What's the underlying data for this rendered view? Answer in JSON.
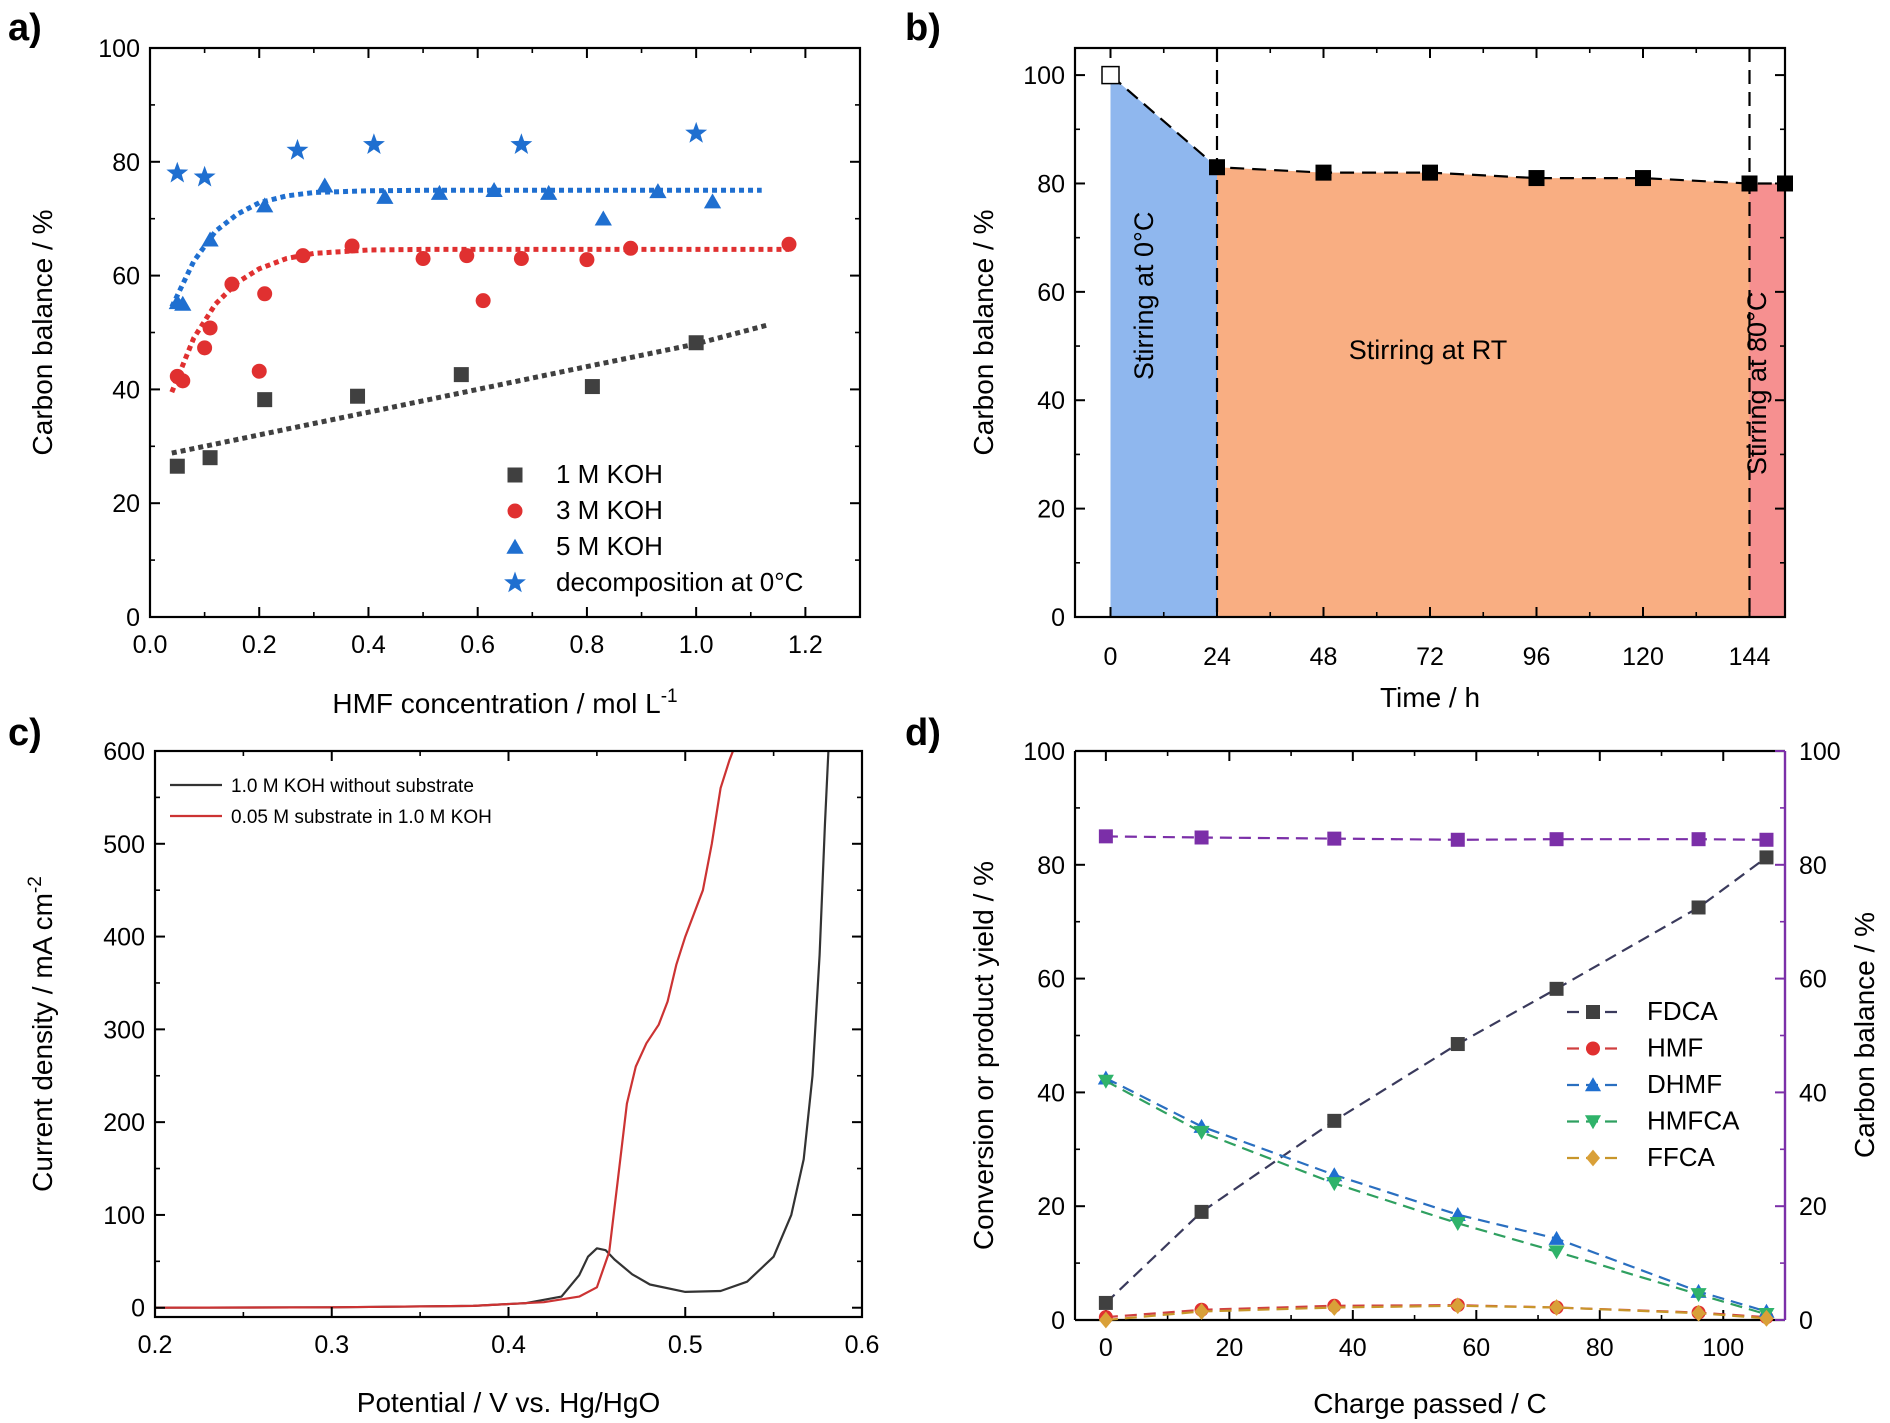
{
  "chart_data": [
    {
      "panel": "a)",
      "type": "scatter",
      "xlabel": "HMF concentration / mol L",
      "xlabel_sup": "-1",
      "ylabel": "Carbon balance / %",
      "xlim": [
        0.0,
        1.3
      ],
      "ylim": [
        0,
        100
      ],
      "xticks": [
        "0.0",
        "0.2",
        "0.4",
        "0.6",
        "0.8",
        "1.0",
        "1.2"
      ],
      "yticks": [
        "0",
        "20",
        "40",
        "60",
        "80",
        "100"
      ],
      "legend_position": "bottom-right",
      "series": [
        {
          "name": "1 M KOH",
          "marker": "square",
          "color": "#404040",
          "x": [
            0.05,
            0.11,
            0.21,
            0.38,
            0.57,
            0.81,
            1.0
          ],
          "y": [
            26.5,
            28,
            38.2,
            38.8,
            42.6,
            40.5,
            48.2
          ],
          "fit_x": [
            0.04,
            0.1,
            0.2,
            0.3,
            0.4,
            0.5,
            0.6,
            0.7,
            0.8,
            0.9,
            1.0,
            1.13
          ],
          "fit_y": [
            28.8,
            30.0,
            32.0,
            34.0,
            36.0,
            38.0,
            40.0,
            42.0,
            44.0,
            46.0,
            48.0,
            51.3
          ]
        },
        {
          "name": "3 M KOH",
          "marker": "circle",
          "color": "#e03030",
          "x": [
            0.05,
            0.06,
            0.1,
            0.11,
            0.15,
            0.2,
            0.21,
            0.28,
            0.37,
            0.5,
            0.58,
            0.61,
            0.68,
            0.8,
            0.88,
            1.17
          ],
          "y": [
            42.3,
            41.5,
            47.3,
            50.8,
            58.5,
            43.2,
            56.8,
            63.5,
            65.2,
            63.0,
            63.5,
            55.6,
            63.0,
            62.8,
            64.8,
            65.5
          ],
          "fit_x": [
            0.04,
            0.08,
            0.12,
            0.16,
            0.2,
            0.25,
            0.3,
            0.4,
            0.5,
            0.7,
            0.9,
            1.17
          ],
          "fit_y": [
            39.5,
            49.0,
            55.0,
            58.8,
            61.2,
            63.0,
            63.9,
            64.5,
            64.6,
            64.6,
            64.6,
            64.6
          ]
        },
        {
          "name": "5 M KOH",
          "marker": "triangle",
          "color": "#1f6fd0",
          "x": [
            0.05,
            0.06,
            0.11,
            0.21,
            0.32,
            0.43,
            0.53,
            0.63,
            0.73,
            0.83,
            0.93,
            1.03
          ],
          "y": [
            55.3,
            55.0,
            66.3,
            72.3,
            75.8,
            73.8,
            74.5,
            75.0,
            74.5,
            70.0,
            74.8,
            73.0
          ],
          "fit_x": [
            0.04,
            0.08,
            0.12,
            0.16,
            0.2,
            0.25,
            0.3,
            0.4,
            0.5,
            0.7,
            0.9,
            1.12
          ],
          "fit_y": [
            54.5,
            62.5,
            67.8,
            70.8,
            72.8,
            74.0,
            74.6,
            74.9,
            75.0,
            75.0,
            75.0,
            75.0
          ]
        },
        {
          "name": "decomposition at 0°C",
          "marker": "star",
          "color": "#1f6fd0",
          "x": [
            0.05,
            0.1,
            0.27,
            0.41,
            0.68,
            1.0
          ],
          "y": [
            78.0,
            77.3,
            82.0,
            83.0,
            83.0,
            85.0
          ]
        }
      ]
    },
    {
      "panel": "b)",
      "type": "area",
      "xlabel": "Time / h",
      "ylabel": "Carbon balance / %",
      "xlim": [
        -8,
        152
      ],
      "ylim": [
        0,
        105
      ],
      "xticks": [
        "0",
        "24",
        "48",
        "72",
        "96",
        "120",
        "144"
      ],
      "yticks": [
        "0",
        "20",
        "40",
        "60",
        "80",
        "100"
      ],
      "x": [
        0,
        24,
        48,
        72,
        96,
        120,
        144,
        152
      ],
      "y": [
        100,
        83,
        82,
        82,
        81,
        81,
        80,
        80
      ],
      "dividers_x": [
        24,
        144
      ],
      "regions": [
        {
          "label": "Stirring at 0°C",
          "from": 0,
          "to": 24,
          "color": "#8fb7ee"
        },
        {
          "label": "Stirring at RT",
          "from": 24,
          "to": 144,
          "color": "#f9ae82"
        },
        {
          "label": "Stirring at 80°C",
          "from": 144,
          "to": 152,
          "color": "#f69090"
        }
      ]
    },
    {
      "panel": "c)",
      "type": "line",
      "xlabel": "Potential / V vs. Hg/HgO",
      "ylabel": "Current density / mA cm",
      "ylabel_sup": "-2",
      "xlim": [
        0.2,
        0.6
      ],
      "ylim": [
        -10,
        600
      ],
      "xticks": [
        "0.2",
        "0.3",
        "0.4",
        "0.5",
        "0.6"
      ],
      "yticks": [
        "0",
        "100",
        "200",
        "300",
        "400",
        "500",
        "600"
      ],
      "legend_position": "top-left",
      "series": [
        {
          "name": "1.0 M KOH without substrate",
          "color": "#333333",
          "x": [
            0.2,
            0.3,
            0.38,
            0.41,
            0.43,
            0.44,
            0.445,
            0.45,
            0.455,
            0.46,
            0.47,
            0.48,
            0.5,
            0.52,
            0.535,
            0.55,
            0.56,
            0.567,
            0.572,
            0.576,
            0.579,
            0.581
          ],
          "y": [
            0,
            0.5,
            2,
            5,
            12,
            35,
            55,
            64,
            62,
            52,
            36,
            25,
            17,
            18,
            28,
            55,
            100,
            160,
            250,
            380,
            520,
            600
          ]
        },
        {
          "name": "0.05 M substrate in 1.0 M KOH",
          "color": "#cc3333",
          "x": [
            0.2,
            0.3,
            0.38,
            0.42,
            0.44,
            0.45,
            0.457,
            0.462,
            0.467,
            0.472,
            0.478,
            0.485,
            0.49,
            0.495,
            0.5,
            0.505,
            0.51,
            0.515,
            0.52,
            0.525,
            0.527
          ],
          "y": [
            0,
            0.5,
            2,
            6,
            12,
            22,
            60,
            140,
            220,
            260,
            285,
            305,
            330,
            370,
            400,
            425,
            450,
            500,
            560,
            590,
            600
          ]
        }
      ]
    },
    {
      "panel": "d)",
      "type": "line",
      "xlabel": "Charge passed / C",
      "ylabel": "Conversion or product yield / %",
      "y2label": "Carbon balance / %",
      "xlim": [
        -5,
        110
      ],
      "ylim": [
        0,
        100
      ],
      "y2lim": [
        0,
        100
      ],
      "xticks": [
        "0",
        "20",
        "40",
        "60",
        "80",
        "100"
      ],
      "yticks": [
        "0",
        "20",
        "40",
        "60",
        "80",
        "100"
      ],
      "y2ticks": [
        "0",
        "20",
        "40",
        "60",
        "80",
        "100"
      ],
      "legend_position": "center-right",
      "x": [
        0,
        15.5,
        37,
        57,
        73,
        96,
        107
      ],
      "series": [
        {
          "name": "FDCA",
          "marker": "square",
          "color": "#404040",
          "line": "#3a3a5c",
          "values": [
            3,
            19,
            35,
            48.5,
            58.2,
            72.5,
            81.3
          ]
        },
        {
          "name": "HMF",
          "marker": "circle",
          "color": "#e03030",
          "line": "#d04040",
          "values": [
            0.5,
            1.8,
            2.5,
            2.6,
            2.2,
            1.3,
            0.5
          ]
        },
        {
          "name": "DHMF",
          "marker": "triangle",
          "color": "#1f6fd0",
          "line": "#2a6fc0",
          "values": [
            42.5,
            34,
            25.5,
            18.5,
            14.3,
            5,
            1.5
          ]
        },
        {
          "name": "HMFCA",
          "marker": "triangle-down",
          "color": "#2fb36a",
          "line": "#2fa060",
          "values": [
            42,
            33,
            24,
            17,
            12,
            4.5,
            1
          ]
        },
        {
          "name": "FFCA",
          "marker": "diamond",
          "color": "#d9a038",
          "line": "#c8962a",
          "values": [
            0,
            1.5,
            2.2,
            2.5,
            2.2,
            1.2,
            0.3
          ]
        },
        {
          "name": "Carbon balance",
          "axis": "right",
          "marker": "square",
          "color": "#7b2fa8",
          "line": "#7b2fa8",
          "values": [
            85,
            84.8,
            84.6,
            84.4,
            84.5,
            84.5,
            84.4
          ]
        }
      ]
    }
  ]
}
